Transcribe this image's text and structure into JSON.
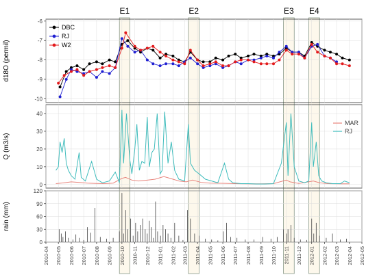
{
  "chart_data": {
    "type": "line",
    "x_axis": {
      "type": "date",
      "range": [
        "2010-04-01",
        "2012-05-01"
      ],
      "tick_labels": [
        "2010-04",
        "2010-05",
        "2010-06",
        "2010-07",
        "2010-08",
        "2010-09",
        "2010-10",
        "2010-11",
        "2010-12",
        "2011-01",
        "2011-02",
        "2011-03",
        "2011-04",
        "2011-05",
        "2011-06",
        "2011-07",
        "2011-08",
        "2011-09",
        "2011-10",
        "2011-11",
        "2011-12",
        "2012-01",
        "2012-02",
        "2012-03",
        "2012-04",
        "2012-05"
      ]
    },
    "events": [
      {
        "label": "E1",
        "start": "2010-09-25",
        "end": "2010-10-20"
      },
      {
        "label": "E2",
        "start": "2011-03-10",
        "end": "2011-04-05"
      },
      {
        "label": "E3",
        "start": "2011-10-25",
        "end": "2011-11-20"
      },
      {
        "label": "E4",
        "start": "2011-12-25",
        "end": "2012-01-20"
      }
    ],
    "panels": [
      {
        "id": "d18o",
        "type": "line",
        "ylabel": "d18O (permil)",
        "ylim": [
          -10.2,
          -5.9
        ],
        "yticks": [
          -10,
          -9,
          -8,
          -7,
          -6
        ],
        "grid": true,
        "legend": "top-left",
        "series": [
          {
            "name": "DBC",
            "color": "#000000",
            "marker": "circle",
            "x": [
              "2010-05-05",
              "2010-05-20",
              "2010-06-01",
              "2010-06-15",
              "2010-07-01",
              "2010-07-15",
              "2010-08-01",
              "2010-08-15",
              "2010-09-01",
              "2010-09-15",
              "2010-10-01",
              "2010-10-15",
              "2010-11-01",
              "2010-11-15",
              "2010-12-01",
              "2010-12-15",
              "2011-01-01",
              "2011-01-15",
              "2011-02-01",
              "2011-02-15",
              "2011-03-01",
              "2011-03-15",
              "2011-04-01",
              "2011-04-15",
              "2011-05-01",
              "2011-05-15",
              "2011-06-01",
              "2011-06-15",
              "2011-07-01",
              "2011-07-15",
              "2011-08-01",
              "2011-08-15",
              "2011-09-01",
              "2011-09-15",
              "2011-10-01",
              "2011-10-15",
              "2011-11-01",
              "2011-11-15",
              "2011-12-01",
              "2011-12-15",
              "2012-01-01",
              "2012-01-15",
              "2012-02-01",
              "2012-02-15",
              "2012-03-01",
              "2012-03-15",
              "2012-04-01"
            ],
            "y": [
              -9.4,
              -8.6,
              -8.4,
              -8.3,
              -8.5,
              -8.2,
              -8.1,
              -8.2,
              -8.0,
              -8.1,
              -7.2,
              -7.0,
              -7.4,
              -7.6,
              -7.4,
              -7.5,
              -7.9,
              -7.7,
              -7.8,
              -8.0,
              -8.1,
              -7.6,
              -8.0,
              -8.1,
              -8.1,
              -7.9,
              -8.0,
              -7.8,
              -7.7,
              -7.9,
              -7.8,
              -7.7,
              -7.8,
              -7.7,
              -7.8,
              -7.7,
              -7.4,
              -7.6,
              -7.6,
              -7.8,
              -7.1,
              -7.3,
              -7.5,
              -7.6,
              -7.7,
              -7.9,
              -8.0
            ]
          },
          {
            "name": "RJ",
            "color": "#1f1fd1",
            "marker": "circle",
            "x": [
              "2010-05-05",
              "2010-05-20",
              "2010-06-01",
              "2010-06-15",
              "2010-07-01",
              "2010-07-15",
              "2010-08-01",
              "2010-08-15",
              "2010-09-01",
              "2010-09-15",
              "2010-10-01",
              "2010-10-15",
              "2010-11-01",
              "2010-11-15",
              "2010-12-01",
              "2010-12-15",
              "2011-01-01",
              "2011-01-15",
              "2011-02-01",
              "2011-02-15",
              "2011-03-01",
              "2011-03-15",
              "2011-04-01",
              "2011-04-15",
              "2011-05-01",
              "2011-05-15",
              "2011-06-01",
              "2011-06-15",
              "2011-07-01",
              "2011-07-15",
              "2011-08-01",
              "2011-08-15",
              "2011-09-01",
              "2011-09-15",
              "2011-10-01",
              "2011-10-15",
              "2011-11-01",
              "2011-11-15",
              "2011-12-01",
              "2011-12-15",
              "2012-01-01",
              "2012-01-15",
              "2012-02-01",
              "2012-02-15",
              "2012-03-01"
            ],
            "y": [
              -9.9,
              -9.0,
              -8.5,
              -8.6,
              -8.7,
              -8.6,
              -8.9,
              -8.6,
              -8.7,
              -8.4,
              -6.9,
              -7.3,
              -7.6,
              -7.5,
              -8.0,
              -8.2,
              -8.3,
              -8.2,
              -8.2,
              -8.3,
              -8.1,
              -7.9,
              -8.2,
              -8.4,
              -8.3,
              -8.2,
              -8.4,
              -8.3,
              -8.1,
              -8.2,
              -8.0,
              -8.0,
              -7.9,
              -7.8,
              -7.9,
              -7.6,
              -7.3,
              -7.6,
              -7.6,
              -7.9,
              -7.3,
              -7.2,
              -7.8,
              -7.9,
              -8.1
            ]
          },
          {
            "name": "W2",
            "color": "#e31a1c",
            "marker": "circle",
            "x": [
              "2010-05-01",
              "2010-05-15",
              "2010-06-01",
              "2010-06-15",
              "2010-07-01",
              "2010-07-15",
              "2010-08-01",
              "2010-08-15",
              "2010-09-01",
              "2010-09-15",
              "2010-10-01",
              "2010-10-10",
              "2010-11-01",
              "2010-11-15",
              "2010-12-01",
              "2010-12-15",
              "2011-01-01",
              "2011-01-15",
              "2011-02-01",
              "2011-02-15",
              "2011-03-01",
              "2011-03-15",
              "2011-04-01",
              "2011-04-15",
              "2011-05-01",
              "2011-05-15",
              "2011-06-01",
              "2011-06-15",
              "2011-07-01",
              "2011-07-15",
              "2011-08-01",
              "2011-08-15",
              "2011-09-01",
              "2011-09-15",
              "2011-10-01",
              "2011-10-15",
              "2011-11-01",
              "2011-11-15",
              "2011-12-01",
              "2011-12-15",
              "2012-01-01",
              "2012-01-15",
              "2012-02-01",
              "2012-02-15",
              "2012-03-01",
              "2012-03-15",
              "2012-04-01"
            ],
            "y": [
              -9.2,
              -8.8,
              -8.6,
              -8.5,
              -8.8,
              -8.6,
              -8.5,
              -8.4,
              -8.3,
              -8.4,
              -7.4,
              -6.6,
              -7.3,
              -7.5,
              -7.4,
              -7.3,
              -7.6,
              -7.8,
              -8.0,
              -8.1,
              -8.2,
              -7.5,
              -8.0,
              -8.3,
              -8.2,
              -8.1,
              -8.3,
              -8.3,
              -8.1,
              -8.0,
              -8.0,
              -8.1,
              -8.2,
              -8.2,
              -8.2,
              -8.0,
              -7.5,
              -7.7,
              -7.7,
              -7.9,
              -7.2,
              -7.6,
              -7.8,
              -7.9,
              -8.2,
              -8.2,
              -8.3
            ]
          }
        ]
      },
      {
        "id": "discharge",
        "type": "line",
        "ylabel": "Q (m3/s)",
        "ylim": [
          -2,
          45
        ],
        "yticks": [
          0,
          10,
          20,
          30,
          40
        ],
        "grid": true,
        "legend": "right",
        "series": [
          {
            "name": "MAR",
            "color": "#e8847c",
            "x": [
              "2010-04-25",
              "2010-05-15",
              "2010-06-01",
              "2010-06-20",
              "2010-07-10",
              "2010-08-01",
              "2010-08-20",
              "2010-09-10",
              "2010-10-01",
              "2010-10-10",
              "2010-10-25",
              "2010-11-10",
              "2010-12-01",
              "2010-12-20",
              "2011-01-10",
              "2011-01-25",
              "2011-02-15",
              "2011-03-05",
              "2011-03-20",
              "2011-04-10",
              "2011-05-01",
              "2011-06-01",
              "2011-07-01",
              "2011-08-01",
              "2011-09-01",
              "2011-10-01",
              "2011-11-01",
              "2011-11-10",
              "2011-12-01",
              "2012-01-05",
              "2012-01-20",
              "2012-02-10",
              "2012-03-10",
              "2012-04-01"
            ],
            "y": [
              0.5,
              1.0,
              1.5,
              1.2,
              0.8,
              0.6,
              0.5,
              0.8,
              3.5,
              4.0,
              2.5,
              2.0,
              2.5,
              3.0,
              4.5,
              3.5,
              2.0,
              1.5,
              2.5,
              1.2,
              0.8,
              0.7,
              0.5,
              0.4,
              0.4,
              0.5,
              2.5,
              1.5,
              0.6,
              2.0,
              1.0,
              0.5,
              0.4,
              0.4
            ]
          },
          {
            "name": "RJ",
            "color": "#3fbcbc",
            "x": [
              "2010-04-25",
              "2010-05-01",
              "2010-05-05",
              "2010-05-10",
              "2010-05-15",
              "2010-05-20",
              "2010-05-25",
              "2010-06-01",
              "2010-06-10",
              "2010-06-20",
              "2010-06-25",
              "2010-07-05",
              "2010-07-20",
              "2010-08-01",
              "2010-08-15",
              "2010-09-01",
              "2010-09-15",
              "2010-09-25",
              "2010-10-01",
              "2010-10-05",
              "2010-10-12",
              "2010-10-20",
              "2010-10-25",
              "2010-11-01",
              "2010-11-06",
              "2010-11-12",
              "2010-11-18",
              "2010-11-25",
              "2010-12-01",
              "2010-12-06",
              "2010-12-12",
              "2010-12-18",
              "2010-12-25",
              "2011-01-01",
              "2011-01-06",
              "2011-01-12",
              "2011-01-20",
              "2011-01-28",
              "2011-02-05",
              "2011-02-15",
              "2011-03-01",
              "2011-03-10",
              "2011-03-15",
              "2011-03-25",
              "2011-04-05",
              "2011-04-20",
              "2011-05-05",
              "2011-05-20",
              "2011-06-05",
              "2011-06-15",
              "2011-06-25",
              "2011-07-15",
              "2011-08-01",
              "2011-08-20",
              "2011-09-10",
              "2011-10-01",
              "2011-10-20",
              "2011-11-01",
              "2011-11-05",
              "2011-11-12",
              "2011-11-20",
              "2011-12-01",
              "2011-12-15",
              "2011-12-25",
              "2012-01-01",
              "2012-01-05",
              "2012-01-12",
              "2012-01-18",
              "2012-01-25",
              "2012-02-05",
              "2012-02-20",
              "2012-03-10",
              "2012-03-20",
              "2012-04-01"
            ],
            "y": [
              8,
              10,
              24,
              18,
              26,
              12,
              8,
              5,
              3,
              18,
              4,
              2,
              13,
              3,
              1,
              2,
              7,
              1,
              42,
              12,
              40,
              14,
              6,
              20,
              34,
              8,
              13,
              12,
              38,
              10,
              18,
              20,
              40,
              6,
              8,
              41,
              12,
              24,
              8,
              3,
              2,
              34,
              12,
              8,
              6,
              3,
              2,
              1,
              12,
              3,
              1,
              0.5,
              0.5,
              0.3,
              0.3,
              0.5,
              12,
              35,
              5,
              40,
              10,
              2,
              1,
              2,
              35,
              10,
              24,
              5,
              2,
              1,
              0.5,
              0.5,
              2,
              1
            ]
          }
        ]
      },
      {
        "id": "rain",
        "type": "bar",
        "ylabel": "rain (mm)",
        "ylim": [
          0,
          120
        ],
        "yticks": [
          0,
          30,
          60,
          90,
          120
        ],
        "grid": true,
        "series": [
          {
            "name": "rain",
            "color": "#555555",
            "x": [
              "2010-05-03",
              "2010-05-08",
              "2010-05-12",
              "2010-05-18",
              "2010-05-25",
              "2010-06-05",
              "2010-06-12",
              "2010-06-20",
              "2010-07-01",
              "2010-07-10",
              "2010-07-18",
              "2010-07-28",
              "2010-08-10",
              "2010-08-25",
              "2010-09-10",
              "2010-09-25",
              "2010-10-01",
              "2010-10-05",
              "2010-10-10",
              "2010-10-15",
              "2010-10-22",
              "2010-10-28",
              "2010-11-03",
              "2010-11-08",
              "2010-11-14",
              "2010-11-20",
              "2010-11-26",
              "2010-12-01",
              "2010-12-06",
              "2010-12-11",
              "2010-12-16",
              "2010-12-21",
              "2010-12-26",
              "2011-01-02",
              "2011-01-08",
              "2011-01-14",
              "2011-01-20",
              "2011-01-27",
              "2011-02-05",
              "2011-02-15",
              "2011-02-25",
              "2011-03-08",
              "2011-03-15",
              "2011-03-25",
              "2011-04-05",
              "2011-04-20",
              "2011-05-05",
              "2011-05-20",
              "2011-06-02",
              "2011-06-10",
              "2011-06-20",
              "2011-07-05",
              "2011-07-25",
              "2011-08-15",
              "2011-09-05",
              "2011-09-25",
              "2011-10-10",
              "2011-10-25",
              "2011-11-01",
              "2011-11-05",
              "2011-11-12",
              "2011-11-20",
              "2011-12-05",
              "2011-12-20",
              "2012-01-01",
              "2012-01-06",
              "2012-01-12",
              "2012-01-20",
              "2012-02-05",
              "2012-02-20",
              "2012-03-10",
              "2012-03-25"
            ],
            "y": [
              30,
              20,
              12,
              25,
              10,
              6,
              18,
              10,
              5,
              35,
              22,
              80,
              12,
              8,
              10,
              25,
              115,
              20,
              75,
              30,
              55,
              15,
              45,
              25,
              40,
              55,
              30,
              20,
              50,
              35,
              10,
              95,
              25,
              15,
              40,
              30,
              20,
              10,
              45,
              15,
              5,
              75,
              55,
              20,
              15,
              8,
              6,
              4,
              25,
              45,
              12,
              10,
              6,
              6,
              12,
              8,
              12,
              30,
              20,
              30,
              40,
              10,
              6,
              5,
              55,
              20,
              45,
              15,
              10,
              20,
              6,
              8
            ]
          }
        ]
      }
    ]
  }
}
